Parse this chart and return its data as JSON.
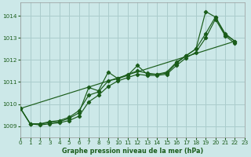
{
  "title": "Graphe pression niveau de la mer (hPa)",
  "bg": "#cce8e8",
  "grid_color": "#aacccc",
  "lc": "#1a5c1a",
  "xlim": [
    0,
    23
  ],
  "ylim": [
    1008.5,
    1014.6
  ],
  "xticks": [
    0,
    1,
    2,
    3,
    4,
    5,
    6,
    7,
    8,
    9,
    10,
    11,
    12,
    13,
    14,
    15,
    16,
    17,
    18,
    19,
    20,
    21,
    22,
    23
  ],
  "yticks": [
    1009,
    1010,
    1011,
    1012,
    1013,
    1014
  ],
  "line1_x": [
    0,
    1,
    2,
    3,
    4,
    5,
    6,
    7,
    8,
    9,
    10,
    11,
    12,
    13,
    14,
    15,
    16,
    17,
    18,
    19,
    20,
    21,
    22
  ],
  "line1_y": [
    1009.8,
    1009.1,
    1009.1,
    1009.15,
    1009.2,
    1009.35,
    1009.6,
    1010.75,
    1010.6,
    1011.45,
    1011.15,
    1011.3,
    1011.75,
    1011.35,
    1011.35,
    1011.4,
    1011.85,
    1012.2,
    1012.5,
    1014.2,
    1013.95,
    1013.15,
    1012.85
  ],
  "line2_x": [
    0,
    1,
    2,
    3,
    4,
    5,
    6,
    7,
    8,
    9,
    10,
    11,
    12,
    13,
    14,
    15,
    16,
    17,
    18,
    19,
    20,
    21,
    22
  ],
  "line2_y": [
    1009.8,
    1009.1,
    1009.1,
    1009.2,
    1009.25,
    1009.4,
    1009.7,
    1010.4,
    1010.55,
    1011.05,
    1011.15,
    1011.35,
    1011.5,
    1011.4,
    1011.35,
    1011.45,
    1011.9,
    1012.2,
    1012.5,
    1013.2,
    1013.95,
    1013.2,
    1012.85
  ],
  "line3_x": [
    0,
    1,
    2,
    3,
    4,
    5,
    6,
    7,
    8,
    9,
    10,
    11,
    12,
    13,
    14,
    15,
    16,
    17,
    18,
    19,
    20,
    21,
    22
  ],
  "line3_y": [
    1009.8,
    1009.1,
    1009.05,
    1009.1,
    1009.15,
    1009.25,
    1009.45,
    1010.1,
    1010.4,
    1010.8,
    1011.05,
    1011.2,
    1011.35,
    1011.3,
    1011.3,
    1011.35,
    1011.75,
    1012.1,
    1012.35,
    1013.0,
    1013.85,
    1013.1,
    1012.75
  ],
  "line4_x": [
    0,
    22
  ],
  "line4_y": [
    1009.8,
    1012.85
  ]
}
